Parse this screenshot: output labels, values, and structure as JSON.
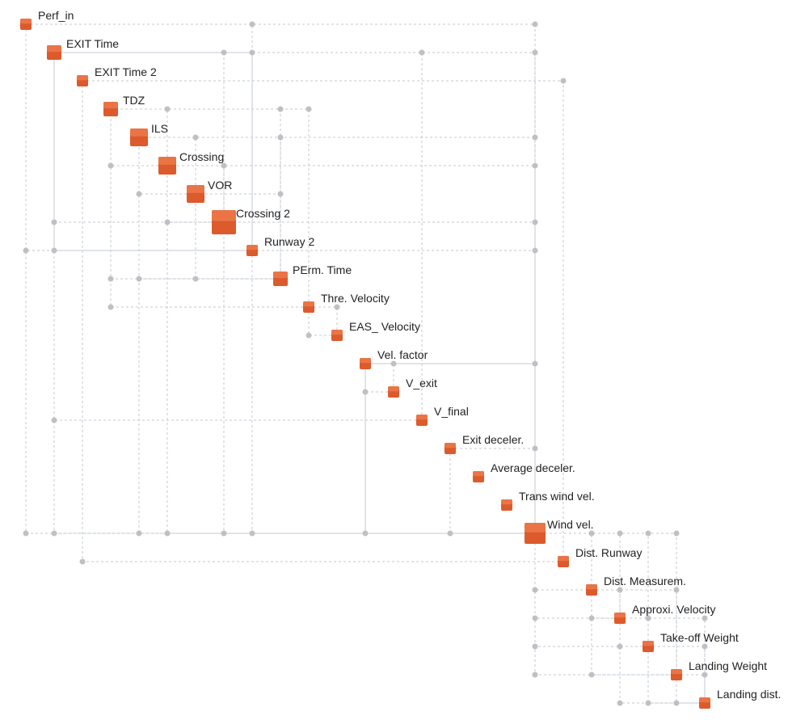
{
  "diagram": {
    "type": "design-structure-matrix",
    "colors": {
      "node": "#dc5a2c",
      "node_top": "#ea7446",
      "edge": "#c2c8d2",
      "dot": "#c0c0c4",
      "text": "#222222"
    },
    "nodes": [
      {
        "label": "Perf_in",
        "weight": 1
      },
      {
        "label": "EXIT Time",
        "weight": 2
      },
      {
        "label": "EXIT Time 2",
        "weight": 1
      },
      {
        "label": "TDZ",
        "weight": 2
      },
      {
        "label": "ILS",
        "weight": 3
      },
      {
        "label": "Crossing",
        "weight": 3
      },
      {
        "label": "VOR",
        "weight": 3
      },
      {
        "label": "Crossing 2",
        "weight": 5
      },
      {
        "label": "Runway 2",
        "weight": 1
      },
      {
        "label": "PErm. Time",
        "weight": 2
      },
      {
        "label": "Thre. Velocity",
        "weight": 1
      },
      {
        "label": "EAS_ Velocity",
        "weight": 1
      },
      {
        "label": "Vel. factor",
        "weight": 1
      },
      {
        "label": "V_exit",
        "weight": 1
      },
      {
        "label": "V_final",
        "weight": 1
      },
      {
        "label": "Exit deceler.",
        "weight": 1
      },
      {
        "label": "Average deceler.",
        "weight": 1
      },
      {
        "label": "Trans wind vel.",
        "weight": 1
      },
      {
        "label": "Wind vel.",
        "weight": 4
      },
      {
        "label": "Dist. Runway",
        "weight": 1
      },
      {
        "label": "Dist. Measurem.",
        "weight": 1
      },
      {
        "label": "Approxi. Velocity",
        "weight": 1
      },
      {
        "label": "Take-off Weight",
        "weight": 1
      },
      {
        "label": "Landing Weight",
        "weight": 1
      },
      {
        "label": "Landing dist.",
        "weight": 1
      }
    ],
    "links": [
      {
        "source": 0,
        "target": 8
      },
      {
        "source": 0,
        "target": 18
      },
      {
        "source": 1,
        "target": 7
      },
      {
        "source": 1,
        "target": 14
      },
      {
        "source": 1,
        "target": 8
      },
      {
        "source": 1,
        "target": 18
      },
      {
        "source": 2,
        "target": 19
      },
      {
        "source": 3,
        "target": 5
      },
      {
        "source": 3,
        "target": 10
      },
      {
        "source": 3,
        "target": 9
      },
      {
        "source": 4,
        "target": 6
      },
      {
        "source": 4,
        "target": 9
      },
      {
        "source": 4,
        "target": 18
      },
      {
        "source": 5,
        "target": 7
      },
      {
        "source": 5,
        "target": 18
      },
      {
        "source": 6,
        "target": 9
      },
      {
        "source": 7,
        "target": 18
      },
      {
        "source": 8,
        "target": 18
      },
      {
        "source": 10,
        "target": 11
      },
      {
        "source": 12,
        "target": 13
      },
      {
        "source": 12,
        "target": 18
      },
      {
        "source": 15,
        "target": 18
      },
      {
        "source": 18,
        "target": 20
      },
      {
        "source": 18,
        "target": 21
      },
      {
        "source": 18,
        "target": 22
      },
      {
        "source": 18,
        "target": 23
      },
      {
        "source": 20,
        "target": 21
      },
      {
        "source": 20,
        "target": 23
      },
      {
        "source": 21,
        "target": 22
      },
      {
        "source": 21,
        "target": 24
      },
      {
        "source": 22,
        "target": 24
      },
      {
        "source": 23,
        "target": 24
      }
    ],
    "solid_links": [
      {
        "source": 1,
        "target": 8
      },
      {
        "source": 12,
        "target": 18
      }
    ]
  }
}
